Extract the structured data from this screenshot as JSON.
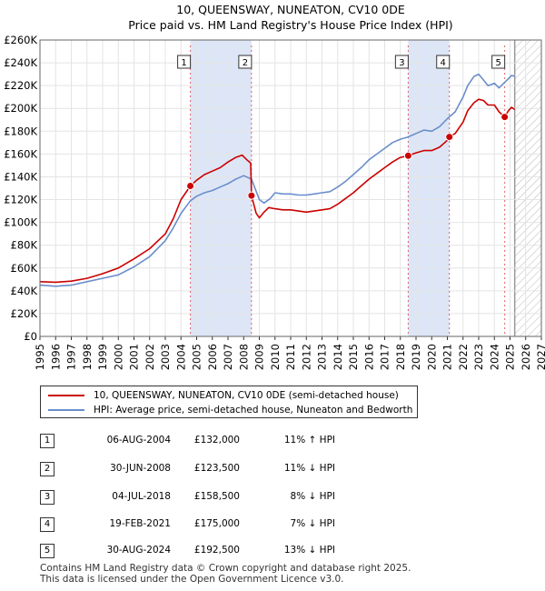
{
  "chart_data": {
    "type": "line",
    "title": "10, QUEENSWAY, NUNEATON, CV10 0DE",
    "subtitle": "Price paid vs. HM Land Registry's House Price Index (HPI)",
    "xlim": [
      1995,
      2027
    ],
    "ylim": [
      0,
      260000
    ],
    "y_ticks": [
      0,
      20000,
      40000,
      60000,
      80000,
      100000,
      120000,
      140000,
      160000,
      180000,
      200000,
      220000,
      240000,
      260000
    ],
    "y_tick_labels": [
      "£0",
      "£20K",
      "£40K",
      "£60K",
      "£80K",
      "£100K",
      "£120K",
      "£140K",
      "£160K",
      "£180K",
      "£200K",
      "£220K",
      "£240K",
      "£260K"
    ],
    "x_ticks": [
      1995,
      1996,
      1997,
      1998,
      1999,
      2000,
      2001,
      2002,
      2003,
      2004,
      2005,
      2006,
      2007,
      2008,
      2009,
      2010,
      2011,
      2012,
      2013,
      2014,
      2015,
      2016,
      2017,
      2018,
      2019,
      2020,
      2021,
      2022,
      2023,
      2024,
      2025,
      2026,
      2027
    ],
    "x_tick_labels": [
      "1995",
      "1996",
      "1997",
      "1998",
      "1999",
      "2000",
      "2001",
      "2002",
      "2003",
      "2004",
      "2005",
      "2006",
      "2007",
      "2008",
      "2009",
      "2010",
      "2011",
      "2012",
      "2013",
      "2014",
      "2015",
      "2016",
      "2017",
      "2018",
      "2019",
      "2020",
      "2021",
      "2022",
      "2023",
      "2024",
      "2025",
      "2026",
      "2027"
    ],
    "data_end_year": 2025.3,
    "grid": true,
    "shaded_periods": [
      [
        2004.6,
        2008.5
      ],
      [
        2018.5,
        2021.13
      ]
    ],
    "sale_markers": [
      {
        "label": "1",
        "x": 2004.6,
        "y": 132000
      },
      {
        "label": "2",
        "x": 2008.5,
        "y": 123500
      },
      {
        "label": "3",
        "x": 2018.5,
        "y": 158500
      },
      {
        "label": "4",
        "x": 2021.13,
        "y": 175000
      },
      {
        "label": "5",
        "x": 2024.66,
        "y": 192500
      }
    ],
    "series": [
      {
        "name": "10, QUEENSWAY, NUNEATON, CV10 0DE (semi-detached house)",
        "color": "#cc0000",
        "x": [
          1995.0,
          1996.0,
          1997.0,
          1998.0,
          1999.0,
          2000.0,
          2001.0,
          2002.0,
          2003.0,
          2003.5,
          2004.0,
          2004.6,
          2005.0,
          2005.5,
          2006.0,
          2006.5,
          2007.0,
          2007.5,
          2007.9,
          2008.2,
          2008.45,
          2008.5,
          2008.8,
          2009.0,
          2009.3,
          2009.6,
          2010.0,
          2010.5,
          2011.0,
          2011.5,
          2012.0,
          2012.5,
          2013.0,
          2013.5,
          2014.0,
          2014.5,
          2015.0,
          2015.5,
          2016.0,
          2016.5,
          2017.0,
          2017.5,
          2018.0,
          2018.5,
          2019.0,
          2019.5,
          2020.0,
          2020.5,
          2021.0,
          2021.13,
          2021.5,
          2022.0,
          2022.3,
          2022.7,
          2023.0,
          2023.3,
          2023.6,
          2024.0,
          2024.3,
          2024.66,
          2024.9,
          2025.1,
          2025.3
        ],
        "values": [
          48000,
          47500,
          48500,
          51000,
          55000,
          60000,
          68000,
          77000,
          90000,
          103000,
          120000,
          132000,
          137000,
          142000,
          145000,
          148000,
          153000,
          157000,
          159000,
          155000,
          152000,
          123500,
          108000,
          104000,
          109000,
          113000,
          112000,
          111000,
          111000,
          110000,
          109000,
          110000,
          111000,
          112000,
          116000,
          121000,
          126000,
          132000,
          138000,
          143000,
          148000,
          153000,
          157000,
          158500,
          161000,
          163000,
          163000,
          166000,
          172000,
          175000,
          178000,
          188000,
          198000,
          205000,
          208000,
          207000,
          203000,
          203000,
          197000,
          192500,
          198000,
          201000,
          199000
        ]
      },
      {
        "name": "HPI: Average price, semi-detached house, Nuneaton and Bedworth",
        "color": "#6a8ecb",
        "x": [
          1995.0,
          1996.0,
          1997.0,
          1998.0,
          1999.0,
          2000.0,
          2001.0,
          2002.0,
          2003.0,
          2003.5,
          2004.0,
          2004.6,
          2005.0,
          2005.5,
          2006.0,
          2006.5,
          2007.0,
          2007.5,
          2008.0,
          2008.5,
          2009.0,
          2009.3,
          2009.7,
          2010.0,
          2010.5,
          2011.0,
          2011.5,
          2012.0,
          2012.5,
          2013.0,
          2013.5,
          2014.0,
          2014.5,
          2015.0,
          2015.5,
          2016.0,
          2016.5,
          2017.0,
          2017.5,
          2018.0,
          2018.5,
          2019.0,
          2019.5,
          2020.0,
          2020.5,
          2021.0,
          2021.5,
          2022.0,
          2022.3,
          2022.7,
          2023.0,
          2023.3,
          2023.6,
          2024.0,
          2024.3,
          2024.6,
          2024.9,
          2025.1,
          2025.3
        ],
        "values": [
          45000,
          44000,
          45000,
          48000,
          51000,
          54000,
          61000,
          70000,
          84000,
          95000,
          108000,
          119000,
          123000,
          126000,
          128000,
          131000,
          134000,
          138000,
          141000,
          138000,
          120000,
          117000,
          121000,
          126000,
          125000,
          125000,
          124000,
          124000,
          125000,
          126000,
          127000,
          131000,
          136000,
          142000,
          148000,
          155000,
          160000,
          165000,
          170000,
          173000,
          175000,
          178000,
          181000,
          180000,
          184000,
          191000,
          197000,
          210000,
          220000,
          228000,
          230000,
          225000,
          220000,
          222000,
          218000,
          222000,
          226000,
          229000,
          228000
        ]
      }
    ]
  },
  "legend": {
    "property_label": "10, QUEENSWAY, NUNEATON, CV10 0DE (semi-detached house)",
    "hpi_label": "HPI: Average price, semi-detached house, Nuneaton and Bedworth"
  },
  "transactions": [
    {
      "num": "1",
      "date": "06-AUG-2004",
      "price": "£132,000",
      "pct": "11% ↑ HPI"
    },
    {
      "num": "2",
      "date": "30-JUN-2008",
      "price": "£123,500",
      "pct": "11% ↓ HPI"
    },
    {
      "num": "3",
      "date": "04-JUL-2018",
      "price": "£158,500",
      "pct": "8% ↓ HPI"
    },
    {
      "num": "4",
      "date": "19-FEB-2021",
      "price": "£175,000",
      "pct": "7% ↓ HPI"
    },
    {
      "num": "5",
      "date": "30-AUG-2024",
      "price": "£192,500",
      "pct": "13% ↓ HPI"
    }
  ],
  "footer": {
    "line1": "Contains HM Land Registry data © Crown copyright and database right 2025.",
    "line2": "This data is licensed under the Open Government Licence v3.0."
  }
}
